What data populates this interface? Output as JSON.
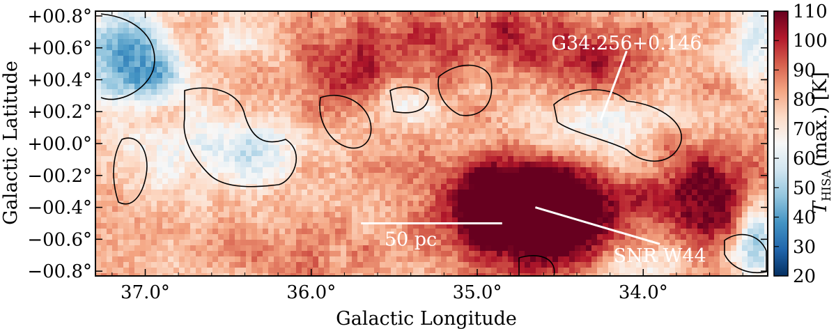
{
  "chart_data": {
    "type": "heatmap",
    "title": "",
    "xlabel": "Galactic Longitude",
    "ylabel": "Galactic Latitude",
    "x_reversed": true,
    "xlim": [
      37.3,
      33.25
    ],
    "ylim": [
      -0.83,
      0.83
    ],
    "xticks": [
      {
        "value": 37.0,
        "label": "37.0°"
      },
      {
        "value": 36.0,
        "label": "36.0°"
      },
      {
        "value": 35.0,
        "label": "35.0°"
      },
      {
        "value": 34.0,
        "label": "34.0°"
      }
    ],
    "yticks": [
      {
        "value": 0.8,
        "label": "+00.8°"
      },
      {
        "value": 0.6,
        "label": "+00.6°"
      },
      {
        "value": 0.4,
        "label": "+00.4°"
      },
      {
        "value": 0.2,
        "label": "+00.2°"
      },
      {
        "value": 0.0,
        "label": "+00.0°"
      },
      {
        "value": -0.2,
        "label": "−00.2°"
      },
      {
        "value": -0.4,
        "label": "−00.4°"
      },
      {
        "value": -0.6,
        "label": "−00.6°"
      },
      {
        "value": -0.8,
        "label": "−00.8°"
      }
    ],
    "colorbar": {
      "label_main": "T",
      "label_sub": "HISA",
      "label_rest": "(max.) [K]",
      "vmin": 20,
      "vmax": 110,
      "ticks": [
        20,
        30,
        40,
        50,
        60,
        70,
        80,
        90,
        100,
        110
      ],
      "colormap": [
        "#053061",
        "#2166ac",
        "#4393c3",
        "#92c5de",
        "#d1e5f0",
        "#f7f7f7",
        "#fddbc7",
        "#f4a582",
        "#d6604d",
        "#b2182b",
        "#67001f"
      ]
    },
    "annotations": [
      {
        "text": "G34.256+0.146",
        "target": {
          "l": 34.256,
          "b": 0.146
        },
        "label_pos": {
          "l": 34.1,
          "b": 0.58
        }
      },
      {
        "text": "SNR W44",
        "target": {
          "l": 34.65,
          "b": -0.4
        },
        "label_pos": {
          "l": 33.9,
          "b": -0.63
        }
      }
    ],
    "scalebar": {
      "text": "50 pc",
      "from_l": 35.7,
      "to_l": 34.85,
      "b": -0.5
    }
  }
}
